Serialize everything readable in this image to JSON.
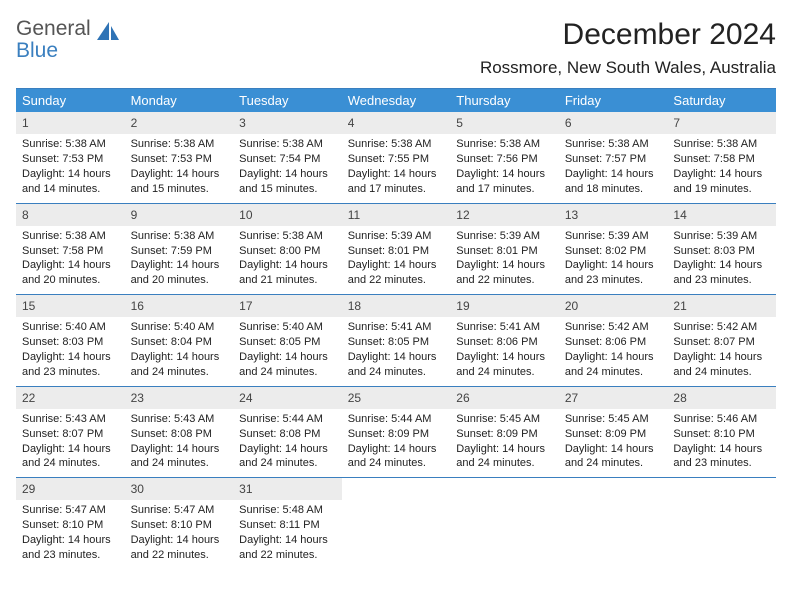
{
  "logo": {
    "line1": "General",
    "line2": "Blue",
    "icon_color": "#2f73b5"
  },
  "header": {
    "month_title": "December 2024",
    "location": "Rossmore, New South Wales, Australia"
  },
  "colors": {
    "header_bar": "#3a8fd4",
    "rule": "#3a7fbf",
    "daynum_bg": "#ececec"
  },
  "day_names": [
    "Sunday",
    "Monday",
    "Tuesday",
    "Wednesday",
    "Thursday",
    "Friday",
    "Saturday"
  ],
  "weeks": [
    [
      {
        "n": "1",
        "sr": "Sunrise: 5:38 AM",
        "ss": "Sunset: 7:53 PM",
        "dl1": "Daylight: 14 hours",
        "dl2": "and 14 minutes."
      },
      {
        "n": "2",
        "sr": "Sunrise: 5:38 AM",
        "ss": "Sunset: 7:53 PM",
        "dl1": "Daylight: 14 hours",
        "dl2": "and 15 minutes."
      },
      {
        "n": "3",
        "sr": "Sunrise: 5:38 AM",
        "ss": "Sunset: 7:54 PM",
        "dl1": "Daylight: 14 hours",
        "dl2": "and 15 minutes."
      },
      {
        "n": "4",
        "sr": "Sunrise: 5:38 AM",
        "ss": "Sunset: 7:55 PM",
        "dl1": "Daylight: 14 hours",
        "dl2": "and 17 minutes."
      },
      {
        "n": "5",
        "sr": "Sunrise: 5:38 AM",
        "ss": "Sunset: 7:56 PM",
        "dl1": "Daylight: 14 hours",
        "dl2": "and 17 minutes."
      },
      {
        "n": "6",
        "sr": "Sunrise: 5:38 AM",
        "ss": "Sunset: 7:57 PM",
        "dl1": "Daylight: 14 hours",
        "dl2": "and 18 minutes."
      },
      {
        "n": "7",
        "sr": "Sunrise: 5:38 AM",
        "ss": "Sunset: 7:58 PM",
        "dl1": "Daylight: 14 hours",
        "dl2": "and 19 minutes."
      }
    ],
    [
      {
        "n": "8",
        "sr": "Sunrise: 5:38 AM",
        "ss": "Sunset: 7:58 PM",
        "dl1": "Daylight: 14 hours",
        "dl2": "and 20 minutes."
      },
      {
        "n": "9",
        "sr": "Sunrise: 5:38 AM",
        "ss": "Sunset: 7:59 PM",
        "dl1": "Daylight: 14 hours",
        "dl2": "and 20 minutes."
      },
      {
        "n": "10",
        "sr": "Sunrise: 5:38 AM",
        "ss": "Sunset: 8:00 PM",
        "dl1": "Daylight: 14 hours",
        "dl2": "and 21 minutes."
      },
      {
        "n": "11",
        "sr": "Sunrise: 5:39 AM",
        "ss": "Sunset: 8:01 PM",
        "dl1": "Daylight: 14 hours",
        "dl2": "and 22 minutes."
      },
      {
        "n": "12",
        "sr": "Sunrise: 5:39 AM",
        "ss": "Sunset: 8:01 PM",
        "dl1": "Daylight: 14 hours",
        "dl2": "and 22 minutes."
      },
      {
        "n": "13",
        "sr": "Sunrise: 5:39 AM",
        "ss": "Sunset: 8:02 PM",
        "dl1": "Daylight: 14 hours",
        "dl2": "and 23 minutes."
      },
      {
        "n": "14",
        "sr": "Sunrise: 5:39 AM",
        "ss": "Sunset: 8:03 PM",
        "dl1": "Daylight: 14 hours",
        "dl2": "and 23 minutes."
      }
    ],
    [
      {
        "n": "15",
        "sr": "Sunrise: 5:40 AM",
        "ss": "Sunset: 8:03 PM",
        "dl1": "Daylight: 14 hours",
        "dl2": "and 23 minutes."
      },
      {
        "n": "16",
        "sr": "Sunrise: 5:40 AM",
        "ss": "Sunset: 8:04 PM",
        "dl1": "Daylight: 14 hours",
        "dl2": "and 24 minutes."
      },
      {
        "n": "17",
        "sr": "Sunrise: 5:40 AM",
        "ss": "Sunset: 8:05 PM",
        "dl1": "Daylight: 14 hours",
        "dl2": "and 24 minutes."
      },
      {
        "n": "18",
        "sr": "Sunrise: 5:41 AM",
        "ss": "Sunset: 8:05 PM",
        "dl1": "Daylight: 14 hours",
        "dl2": "and 24 minutes."
      },
      {
        "n": "19",
        "sr": "Sunrise: 5:41 AM",
        "ss": "Sunset: 8:06 PM",
        "dl1": "Daylight: 14 hours",
        "dl2": "and 24 minutes."
      },
      {
        "n": "20",
        "sr": "Sunrise: 5:42 AM",
        "ss": "Sunset: 8:06 PM",
        "dl1": "Daylight: 14 hours",
        "dl2": "and 24 minutes."
      },
      {
        "n": "21",
        "sr": "Sunrise: 5:42 AM",
        "ss": "Sunset: 8:07 PM",
        "dl1": "Daylight: 14 hours",
        "dl2": "and 24 minutes."
      }
    ],
    [
      {
        "n": "22",
        "sr": "Sunrise: 5:43 AM",
        "ss": "Sunset: 8:07 PM",
        "dl1": "Daylight: 14 hours",
        "dl2": "and 24 minutes."
      },
      {
        "n": "23",
        "sr": "Sunrise: 5:43 AM",
        "ss": "Sunset: 8:08 PM",
        "dl1": "Daylight: 14 hours",
        "dl2": "and 24 minutes."
      },
      {
        "n": "24",
        "sr": "Sunrise: 5:44 AM",
        "ss": "Sunset: 8:08 PM",
        "dl1": "Daylight: 14 hours",
        "dl2": "and 24 minutes."
      },
      {
        "n": "25",
        "sr": "Sunrise: 5:44 AM",
        "ss": "Sunset: 8:09 PM",
        "dl1": "Daylight: 14 hours",
        "dl2": "and 24 minutes."
      },
      {
        "n": "26",
        "sr": "Sunrise: 5:45 AM",
        "ss": "Sunset: 8:09 PM",
        "dl1": "Daylight: 14 hours",
        "dl2": "and 24 minutes."
      },
      {
        "n": "27",
        "sr": "Sunrise: 5:45 AM",
        "ss": "Sunset: 8:09 PM",
        "dl1": "Daylight: 14 hours",
        "dl2": "and 24 minutes."
      },
      {
        "n": "28",
        "sr": "Sunrise: 5:46 AM",
        "ss": "Sunset: 8:10 PM",
        "dl1": "Daylight: 14 hours",
        "dl2": "and 23 minutes."
      }
    ],
    [
      {
        "n": "29",
        "sr": "Sunrise: 5:47 AM",
        "ss": "Sunset: 8:10 PM",
        "dl1": "Daylight: 14 hours",
        "dl2": "and 23 minutes."
      },
      {
        "n": "30",
        "sr": "Sunrise: 5:47 AM",
        "ss": "Sunset: 8:10 PM",
        "dl1": "Daylight: 14 hours",
        "dl2": "and 22 minutes."
      },
      {
        "n": "31",
        "sr": "Sunrise: 5:48 AM",
        "ss": "Sunset: 8:11 PM",
        "dl1": "Daylight: 14 hours",
        "dl2": "and 22 minutes."
      },
      null,
      null,
      null,
      null
    ]
  ]
}
